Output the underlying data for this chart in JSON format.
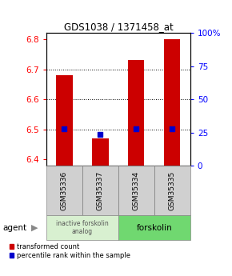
{
  "title": "GDS1038 / 1371458_at",
  "samples": [
    "GSM35336",
    "GSM35337",
    "GSM35334",
    "GSM35335"
  ],
  "red_values": [
    6.68,
    6.47,
    6.73,
    6.8
  ],
  "blue_values": [
    6.501,
    6.484,
    6.501,
    6.501
  ],
  "ylim": [
    6.38,
    6.82
  ],
  "yticks_left": [
    6.4,
    6.5,
    6.6,
    6.7,
    6.8
  ],
  "yticks_right": [
    0,
    25,
    50,
    75,
    100
  ],
  "yticks_right_labels": [
    "0",
    "25",
    "50",
    "75",
    "100%"
  ],
  "bar_width": 0.45,
  "red_color": "#cc0000",
  "blue_color": "#0000cc",
  "group1_label": "inactive forskolin\nanalog",
  "group2_label": "forskolin",
  "group1_color": "#d8f0d0",
  "group2_color": "#70d870",
  "legend_red": "transformed count",
  "legend_blue": "percentile rank within the sample",
  "agent_label": "agent"
}
